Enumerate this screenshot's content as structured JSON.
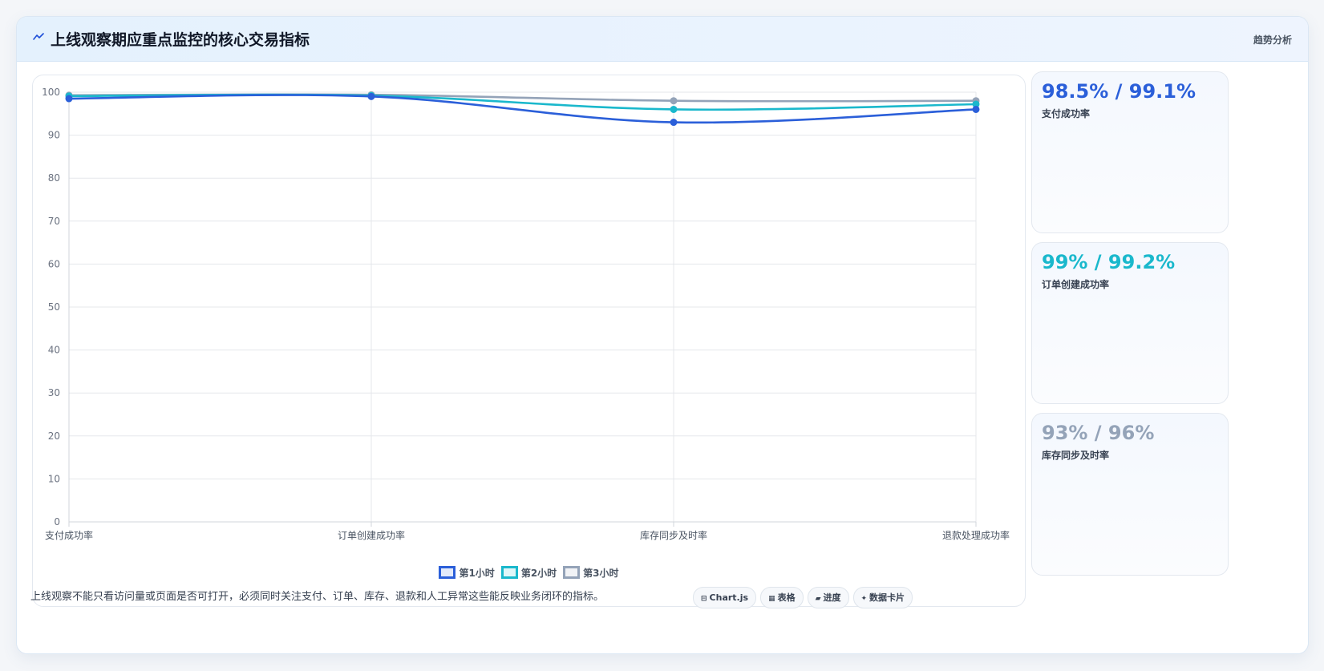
{
  "header": {
    "icon": "wave-icon",
    "title": "上线观察期应重点监控的核心交易指标",
    "action_label": "趋势分析"
  },
  "chart_data": {
    "type": "line",
    "categories": [
      "支付成功率",
      "订单创建成功率",
      "库存同步及时率",
      "退款处理成功率"
    ],
    "series": [
      {
        "name": "第1小时",
        "values": [
          98.5,
          99,
          93,
          96
        ],
        "color": "#2b5fd9"
      },
      {
        "name": "第2小时",
        "values": [
          99.1,
          99.2,
          96,
          97.2
        ],
        "color": "#1ab8cc"
      },
      {
        "name": "第3小时",
        "values": [
          99.3,
          99.4,
          98,
          98
        ],
        "color": "#94a3b8"
      }
    ],
    "ylim": [
      0,
      100
    ],
    "yticks": [
      0,
      10,
      20,
      30,
      40,
      50,
      60,
      70,
      80,
      90,
      100
    ],
    "grid": true,
    "legend_position": "bottom"
  },
  "stats": [
    {
      "value": "98.5% / 99.1%",
      "label": "支付成功率",
      "color": "#2b5fd9"
    },
    {
      "value": "99% / 99.2%",
      "label": "订单创建成功率",
      "color": "#1ab8cc"
    },
    {
      "value": "93% / 96%",
      "label": "库存同步及时率",
      "color": "#94a3b8"
    }
  ],
  "footer": {
    "note": "上线观察不能只看访问量或页面是否可打开，必须同时关注支付、订单、库存、退款和人工异常这些能反映业务闭环的指标。",
    "chips": [
      {
        "icon": "chart-icon",
        "glyph": "⊟",
        "label": "Chart.js"
      },
      {
        "icon": "table-icon",
        "glyph": "▦",
        "label": "表格"
      },
      {
        "icon": "progress-icon",
        "glyph": "▰",
        "label": "进度"
      },
      {
        "icon": "sparkle-icon",
        "glyph": "✦",
        "label": "数据卡片"
      }
    ]
  }
}
